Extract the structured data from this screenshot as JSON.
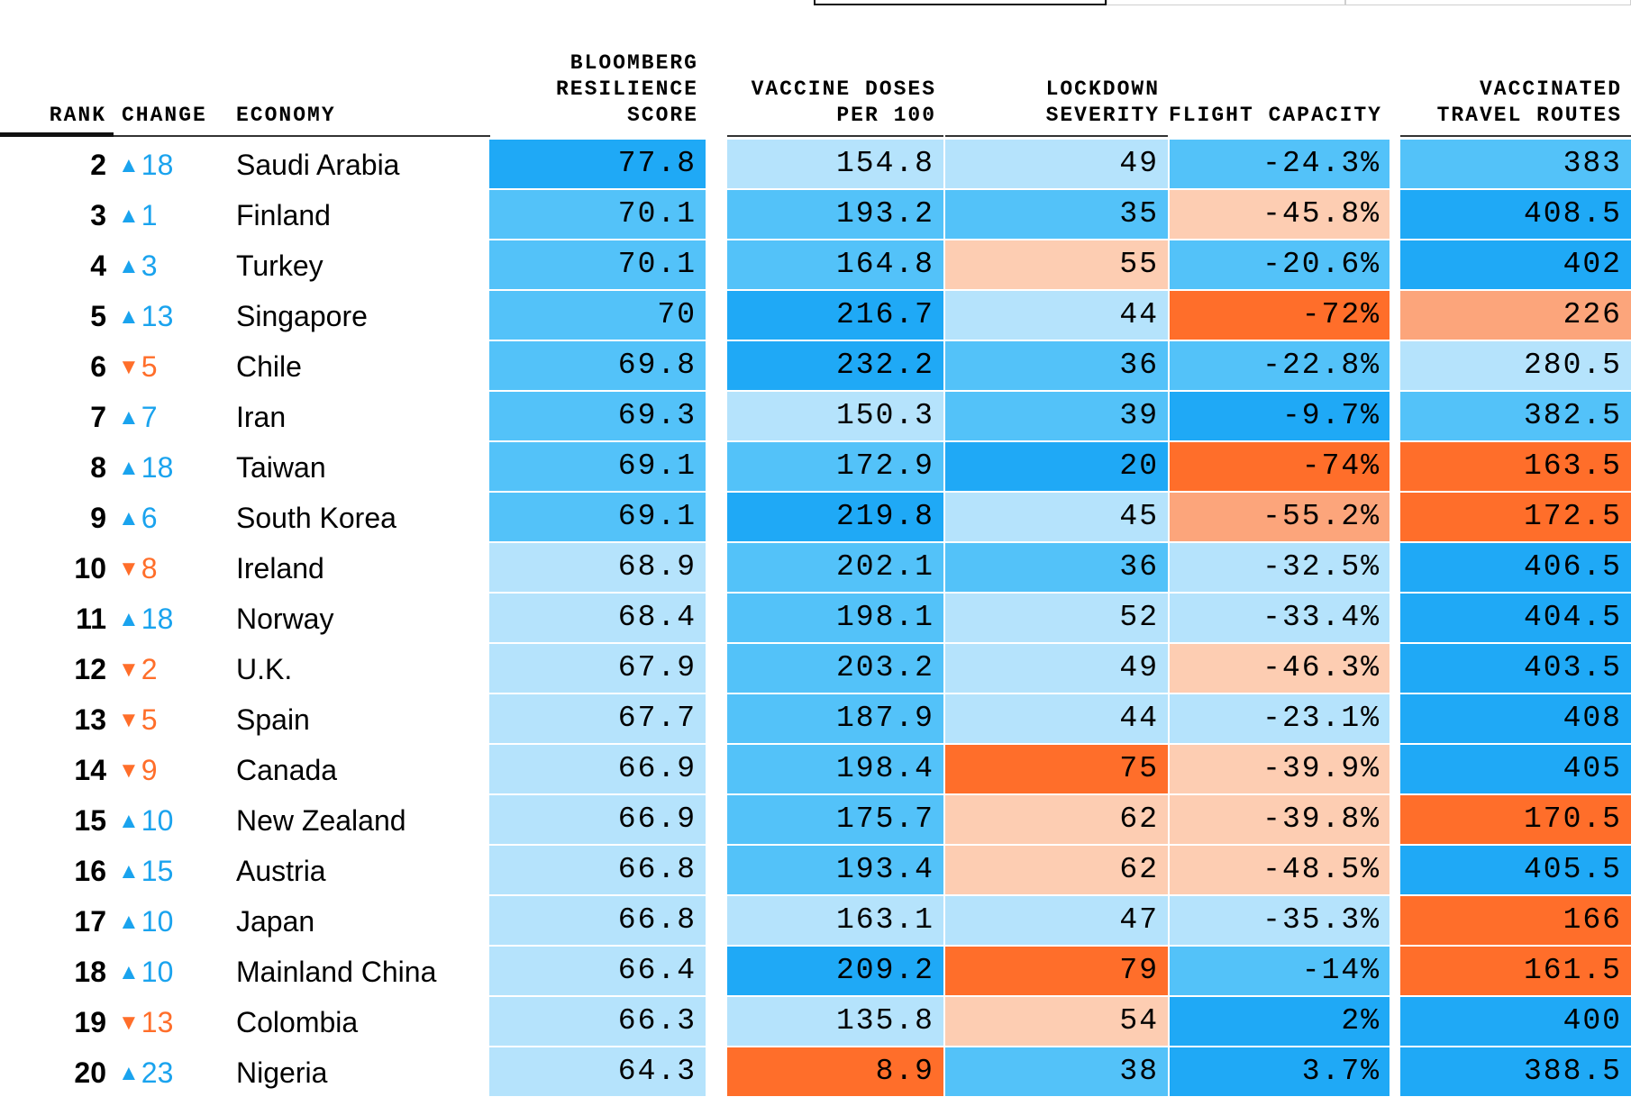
{
  "colors": {
    "blue_dark": "#1fa9f6",
    "blue_mid": "#53c2f9",
    "blue_light": "#b5e3fc",
    "peach_light": "#fdcdb2",
    "peach": "#fca57b",
    "orange": "#ff6e2a",
    "up_arrow": "#1aa3ee",
    "down_arrow": "#ff6e2a"
  },
  "headers": {
    "rank": "RANK",
    "change": "CHANGE",
    "economy": "ECONOMY",
    "resilience": [
      "BLOOMBERG",
      "RESILIENCE",
      "SCORE"
    ],
    "vaccine": [
      "VACCINE DOSES",
      "PER 100"
    ],
    "lockdown": [
      "LOCKDOWN",
      "SEVERITY"
    ],
    "flight": [
      "FLIGHT CAPACITY"
    ],
    "routes": [
      "VACCINATED",
      "TRAVEL ROUTES"
    ]
  },
  "rows": [
    {
      "rank": "2",
      "dir": "up",
      "change": "18",
      "economy": "Saudi Arabia",
      "resilience": "77.8",
      "res_c": "blue_dark",
      "vaccine": "154.8",
      "vac_c": "blue_light",
      "lockdown": "49",
      "lock_c": "blue_light",
      "flight": "-24.3%",
      "flt_c": "blue_mid",
      "routes": "383",
      "rt_c": "blue_mid"
    },
    {
      "rank": "3",
      "dir": "up",
      "change": "1",
      "economy": "Finland",
      "resilience": "70.1",
      "res_c": "blue_mid",
      "vaccine": "193.2",
      "vac_c": "blue_mid",
      "lockdown": "35",
      "lock_c": "blue_mid",
      "flight": "-45.8%",
      "flt_c": "peach_light",
      "routes": "408.5",
      "rt_c": "blue_dark"
    },
    {
      "rank": "4",
      "dir": "up",
      "change": "3",
      "economy": "Turkey",
      "resilience": "70.1",
      "res_c": "blue_mid",
      "vaccine": "164.8",
      "vac_c": "blue_mid",
      "lockdown": "55",
      "lock_c": "peach_light",
      "flight": "-20.6%",
      "flt_c": "blue_mid",
      "routes": "402",
      "rt_c": "blue_dark"
    },
    {
      "rank": "5",
      "dir": "up",
      "change": "13",
      "economy": "Singapore",
      "resilience": "70",
      "res_c": "blue_mid",
      "vaccine": "216.7",
      "vac_c": "blue_dark",
      "lockdown": "44",
      "lock_c": "blue_light",
      "flight": "-72%",
      "flt_c": "orange",
      "routes": "226",
      "rt_c": "peach"
    },
    {
      "rank": "6",
      "dir": "down",
      "change": "5",
      "economy": "Chile",
      "resilience": "69.8",
      "res_c": "blue_mid",
      "vaccine": "232.2",
      "vac_c": "blue_dark",
      "lockdown": "36",
      "lock_c": "blue_mid",
      "flight": "-22.8%",
      "flt_c": "blue_mid",
      "routes": "280.5",
      "rt_c": "blue_light"
    },
    {
      "rank": "7",
      "dir": "up",
      "change": "7",
      "economy": "Iran",
      "resilience": "69.3",
      "res_c": "blue_mid",
      "vaccine": "150.3",
      "vac_c": "blue_light",
      "lockdown": "39",
      "lock_c": "blue_mid",
      "flight": "-9.7%",
      "flt_c": "blue_dark",
      "routes": "382.5",
      "rt_c": "blue_mid"
    },
    {
      "rank": "8",
      "dir": "up",
      "change": "18",
      "economy": "Taiwan",
      "resilience": "69.1",
      "res_c": "blue_mid",
      "vaccine": "172.9",
      "vac_c": "blue_mid",
      "lockdown": "20",
      "lock_c": "blue_dark",
      "flight": "-74%",
      "flt_c": "orange",
      "routes": "163.5",
      "rt_c": "orange"
    },
    {
      "rank": "9",
      "dir": "up",
      "change": "6",
      "economy": "South Korea",
      "resilience": "69.1",
      "res_c": "blue_mid",
      "vaccine": "219.8",
      "vac_c": "blue_dark",
      "lockdown": "45",
      "lock_c": "blue_light",
      "flight": "-55.2%",
      "flt_c": "peach",
      "routes": "172.5",
      "rt_c": "orange"
    },
    {
      "rank": "10",
      "dir": "down",
      "change": "8",
      "economy": "Ireland",
      "resilience": "68.9",
      "res_c": "blue_light",
      "vaccine": "202.1",
      "vac_c": "blue_mid",
      "lockdown": "36",
      "lock_c": "blue_mid",
      "flight": "-32.5%",
      "flt_c": "blue_light",
      "routes": "406.5",
      "rt_c": "blue_dark"
    },
    {
      "rank": "11",
      "dir": "up",
      "change": "18",
      "economy": "Norway",
      "resilience": "68.4",
      "res_c": "blue_light",
      "vaccine": "198.1",
      "vac_c": "blue_mid",
      "lockdown": "52",
      "lock_c": "blue_light",
      "flight": "-33.4%",
      "flt_c": "blue_light",
      "routes": "404.5",
      "rt_c": "blue_dark"
    },
    {
      "rank": "12",
      "dir": "down",
      "change": "2",
      "economy": "U.K.",
      "resilience": "67.9",
      "res_c": "blue_light",
      "vaccine": "203.2",
      "vac_c": "blue_mid",
      "lockdown": "49",
      "lock_c": "blue_light",
      "flight": "-46.3%",
      "flt_c": "peach_light",
      "routes": "403.5",
      "rt_c": "blue_dark"
    },
    {
      "rank": "13",
      "dir": "down",
      "change": "5",
      "economy": "Spain",
      "resilience": "67.7",
      "res_c": "blue_light",
      "vaccine": "187.9",
      "vac_c": "blue_mid",
      "lockdown": "44",
      "lock_c": "blue_light",
      "flight": "-23.1%",
      "flt_c": "blue_light",
      "routes": "408",
      "rt_c": "blue_dark"
    },
    {
      "rank": "14",
      "dir": "down",
      "change": "9",
      "economy": "Canada",
      "resilience": "66.9",
      "res_c": "blue_light",
      "vaccine": "198.4",
      "vac_c": "blue_mid",
      "lockdown": "75",
      "lock_c": "orange",
      "flight": "-39.9%",
      "flt_c": "peach_light",
      "routes": "405",
      "rt_c": "blue_dark"
    },
    {
      "rank": "15",
      "dir": "up",
      "change": "10",
      "economy": "New Zealand",
      "resilience": "66.9",
      "res_c": "blue_light",
      "vaccine": "175.7",
      "vac_c": "blue_mid",
      "lockdown": "62",
      "lock_c": "peach_light",
      "flight": "-39.8%",
      "flt_c": "peach_light",
      "routes": "170.5",
      "rt_c": "orange"
    },
    {
      "rank": "16",
      "dir": "up",
      "change": "15",
      "economy": "Austria",
      "resilience": "66.8",
      "res_c": "blue_light",
      "vaccine": "193.4",
      "vac_c": "blue_mid",
      "lockdown": "62",
      "lock_c": "peach_light",
      "flight": "-48.5%",
      "flt_c": "peach_light",
      "routes": "405.5",
      "rt_c": "blue_dark"
    },
    {
      "rank": "17",
      "dir": "up",
      "change": "10",
      "economy": "Japan",
      "resilience": "66.8",
      "res_c": "blue_light",
      "vaccine": "163.1",
      "vac_c": "blue_light",
      "lockdown": "47",
      "lock_c": "blue_light",
      "flight": "-35.3%",
      "flt_c": "blue_light",
      "routes": "166",
      "rt_c": "orange"
    },
    {
      "rank": "18",
      "dir": "up",
      "change": "10",
      "economy": "Mainland China",
      "resilience": "66.4",
      "res_c": "blue_light",
      "vaccine": "209.2",
      "vac_c": "blue_dark",
      "lockdown": "79",
      "lock_c": "orange",
      "flight": "-14%",
      "flt_c": "blue_mid",
      "routes": "161.5",
      "rt_c": "orange"
    },
    {
      "rank": "19",
      "dir": "down",
      "change": "13",
      "economy": "Colombia",
      "resilience": "66.3",
      "res_c": "blue_light",
      "vaccine": "135.8",
      "vac_c": "blue_light",
      "lockdown": "54",
      "lock_c": "peach_light",
      "flight": "2%",
      "flt_c": "blue_dark",
      "routes": "400",
      "rt_c": "blue_dark"
    },
    {
      "rank": "20",
      "dir": "up",
      "change": "23",
      "economy": "Nigeria",
      "resilience": "64.3",
      "res_c": "blue_light",
      "vaccine": "8.9",
      "vac_c": "orange",
      "lockdown": "38",
      "lock_c": "blue_mid",
      "flight": "3.7%",
      "flt_c": "blue_dark",
      "routes": "388.5",
      "rt_c": "blue_dark"
    }
  ]
}
